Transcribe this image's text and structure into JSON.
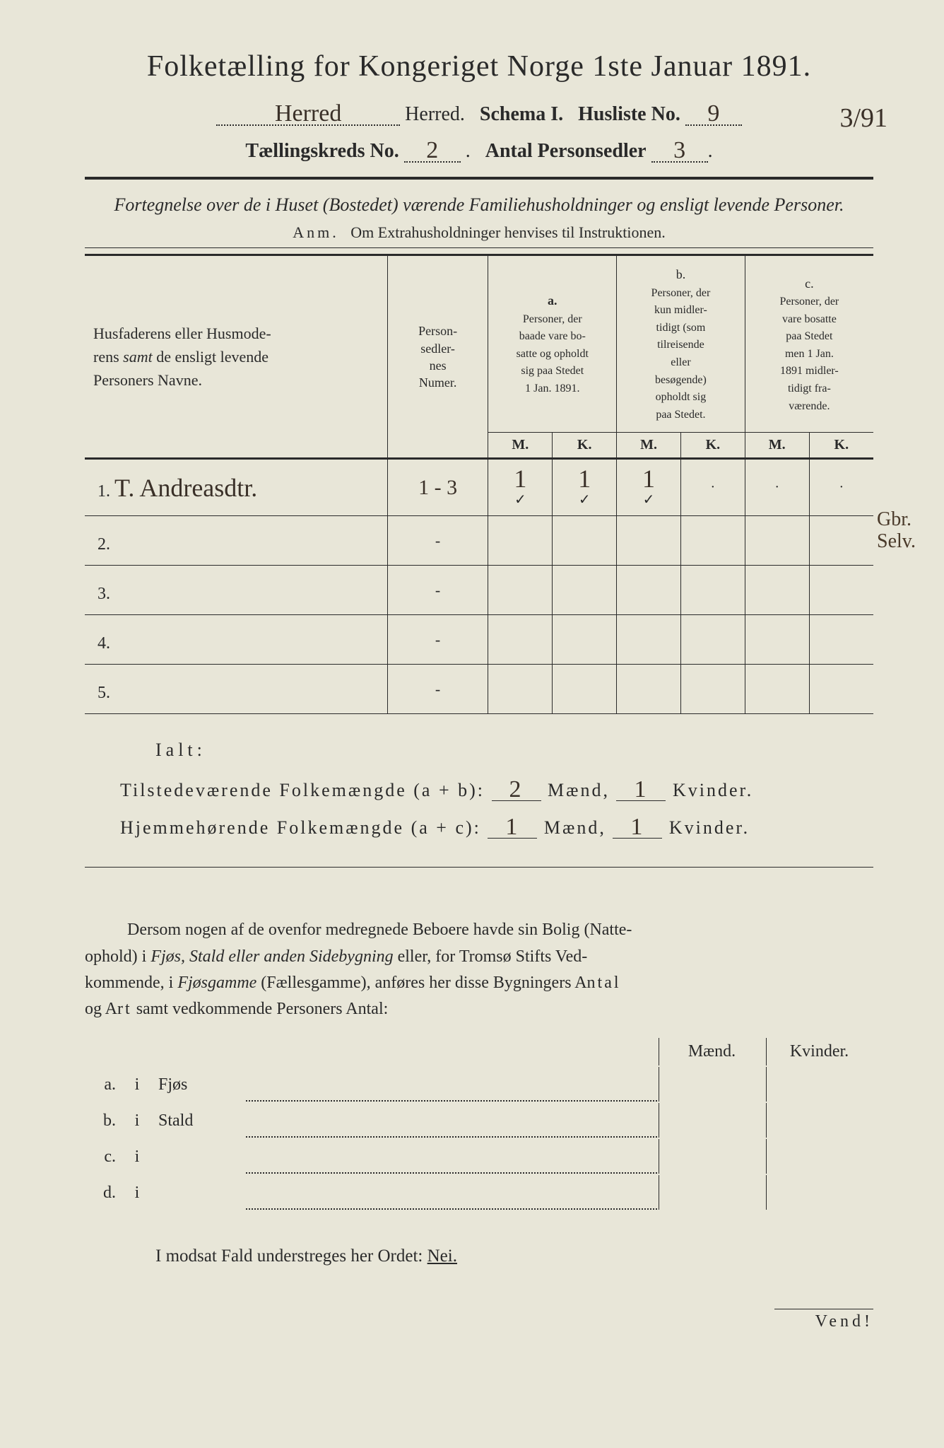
{
  "title": "Folketælling for Kongeriget Norge 1ste Januar 1891.",
  "line2": {
    "herred_value": "Herred",
    "herred_label": "Herred.",
    "schema": "Schema I.",
    "husliste_label": "Husliste No.",
    "husliste_value": "9"
  },
  "top_right_extra": "3/91",
  "line3": {
    "kreds_label": "Tællingskreds No.",
    "kreds_value": "2",
    "antal_label": "Antal Personsedler",
    "antal_value": "3"
  },
  "subtitle": "Fortegnelse over de i Huset (Bostedet) værende Familiehusholdninger og ensligt levende Personer.",
  "anm_label": "Anm.",
  "anm_text": "Om Extrahusholdninger henvises til Instruktionen.",
  "columns": {
    "names": "Husfaderens eller Husmoderens samt de ensligt levende Personers Navne.",
    "nummer": "Personsedlernes Numer.",
    "a_label": "a.",
    "a_text": "Personer, der baade vare bosatte og opholdt sig paa Stedet 1 Jan. 1891.",
    "b_label": "b.",
    "b_text": "Personer, der kun midlertidigt (som tilreisende eller besøgende) opholdt sig paa Stedet.",
    "c_label": "c.",
    "c_text": "Personer, der vare bosatte paa Stedet men 1 Jan. 1891 midlertidigt fraværende.",
    "m": "M.",
    "k": "K."
  },
  "margin_note": "Gbr.\nSelv.",
  "rows": [
    {
      "n": "1.",
      "name": "T. Andreasdtr.",
      "num": "1 - 3",
      "a_m": "1",
      "a_k": "1",
      "b_m": "1",
      "b_k": "·",
      "c_m": "·",
      "c_k": "·",
      "ticks": true
    },
    {
      "n": "2.",
      "name": "",
      "num": "-",
      "a_m": "",
      "a_k": "",
      "b_m": "",
      "b_k": "",
      "c_m": "",
      "c_k": ""
    },
    {
      "n": "3.",
      "name": "",
      "num": "-",
      "a_m": "",
      "a_k": "",
      "b_m": "",
      "b_k": "",
      "c_m": "",
      "c_k": ""
    },
    {
      "n": "4.",
      "name": "",
      "num": "-",
      "a_m": "",
      "a_k": "",
      "b_m": "",
      "b_k": "",
      "c_m": "",
      "c_k": ""
    },
    {
      "n": "5.",
      "name": "",
      "num": "-",
      "a_m": "",
      "a_k": "",
      "b_m": "",
      "b_k": "",
      "c_m": "",
      "c_k": ""
    }
  ],
  "ialt": {
    "label": "Ialt:",
    "row1_label": "Tilstedeværende Folkemængde (a + b):",
    "row2_label": "Hjemmehørende Folkemængde (a + c):",
    "maend": "Mænd,",
    "kvinder": "Kvinder.",
    "r1m": "2",
    "r1k": "1",
    "r2m": "1",
    "r2k": "1"
  },
  "para": "Dersom nogen af de ovenfor medregnede Beboere havde sin Bolig (Natteophold) i Fjøs, Stald eller anden Sidebygning eller, for Tromsø Stifts Vedkommende, i Fjøsgamme (Fællesgamme), anføres her disse Bygningers Antal og Art samt vedkommende Personers Antal:",
  "subtable": {
    "maend": "Mænd.",
    "kvinder": "Kvinder.",
    "rows": [
      {
        "l": "a.",
        "i": "i",
        "label": "Fjøs"
      },
      {
        "l": "b.",
        "i": "i",
        "label": "Stald"
      },
      {
        "l": "c.",
        "i": "i",
        "label": ""
      },
      {
        "l": "d.",
        "i": "i",
        "label": ""
      }
    ]
  },
  "footer": "I modsat Fald understreges her Ordet:",
  "footer_word": "Nei.",
  "vend": "Vend!",
  "colors": {
    "bg": "#e8e6d8",
    "ink": "#2a2a2a",
    "hand": "#3a3028"
  }
}
